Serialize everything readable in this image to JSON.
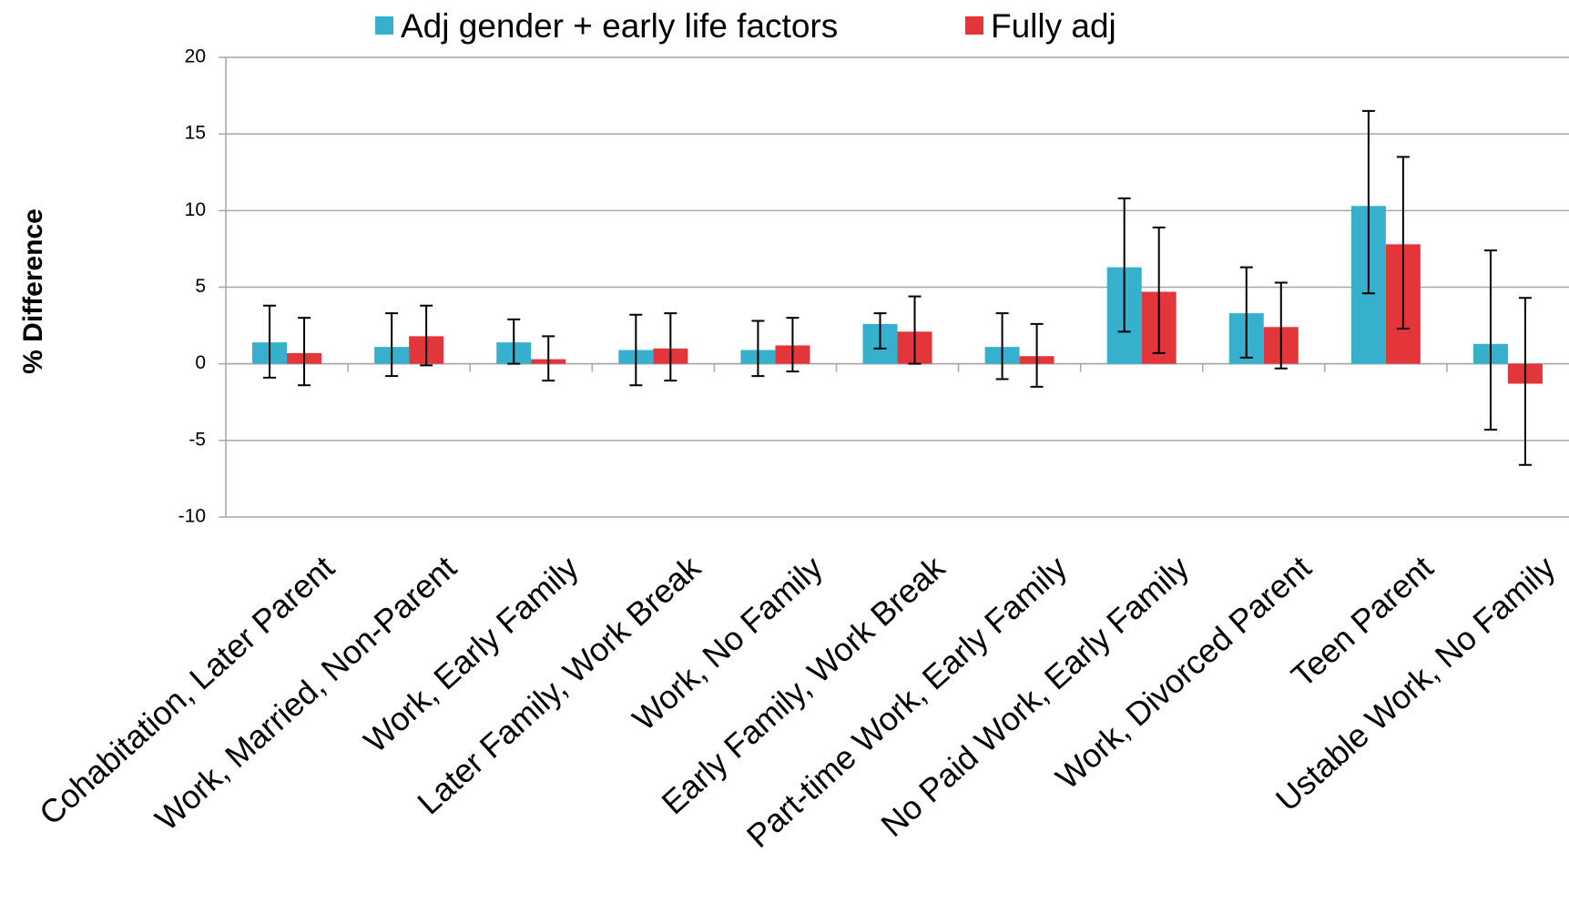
{
  "chart_data": {
    "type": "bar",
    "y_label": "% Difference",
    "categories": [
      "Cohabitation, Later Parent",
      "Work, Married, Non-Parent",
      "Work, Early Family",
      "Later Family, Work Break",
      "Work, No Family",
      "Early Family, Work Break",
      "Part-time Work, Early Family",
      "No Paid Work, Early Family",
      "Work, Divorced Parent",
      "Teen Parent",
      "Ustable Work, No Family"
    ],
    "series": [
      {
        "name": "Adj gender + early life factors",
        "color": "#36b0cc",
        "values": [
          1.4,
          1.1,
          1.4,
          0.9,
          0.9,
          2.6,
          1.1,
          6.3,
          3.3,
          10.3,
          1.3
        ],
        "lower": [
          -0.9,
          -0.8,
          0,
          -1.4,
          -0.8,
          1.0,
          -1.0,
          2.1,
          0.4,
          4.6,
          -4.3
        ],
        "upper": [
          3.8,
          3.3,
          2.9,
          3.2,
          2.8,
          3.3,
          3.3,
          10.8,
          6.3,
          16.5,
          7.4
        ]
      },
      {
        "name": "Fully adj",
        "color": "#e3363a",
        "values": [
          0.7,
          1.8,
          0.3,
          1.0,
          1.2,
          2.1,
          0.5,
          4.7,
          2.4,
          7.8,
          -1.3
        ],
        "lower": [
          -1.4,
          -0.1,
          -1.1,
          -1.1,
          -0.5,
          0,
          -1.5,
          0.7,
          -0.3,
          2.3,
          -6.6
        ],
        "upper": [
          3.0,
          3.8,
          1.8,
          3.3,
          3.0,
          4.4,
          2.6,
          8.9,
          5.3,
          13.5,
          4.3
        ]
      }
    ],
    "ylim": [
      -10,
      20
    ],
    "yticks": [
      -10,
      -5,
      0,
      5,
      10,
      15,
      20
    ],
    "grid": true
  }
}
